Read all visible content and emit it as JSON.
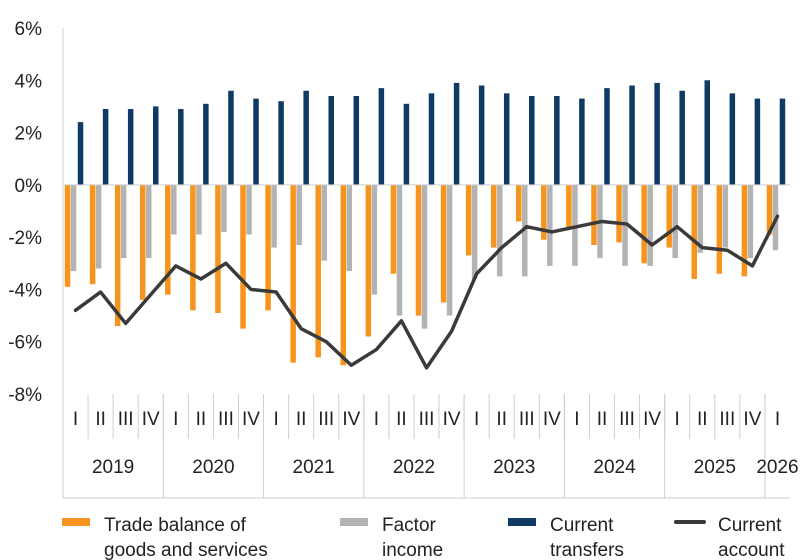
{
  "chart_data": {
    "type": "bar",
    "title": "",
    "xlabel": "",
    "ylabel": "",
    "ylim": [
      -8,
      6
    ],
    "yticks": [
      "6%",
      "4%",
      "2%",
      "0%",
      "-2%",
      "-4%",
      "-6%",
      "-8%"
    ],
    "ytick_values": [
      6,
      4,
      2,
      0,
      -2,
      -4,
      -6,
      -8
    ],
    "grid": false,
    "legend_position": "bottom",
    "categories": [
      "I",
      "II",
      "III",
      "IV",
      "I",
      "II",
      "III",
      "IV",
      "I",
      "II",
      "III",
      "IV",
      "I",
      "II",
      "III",
      "IV",
      "I",
      "II",
      "III",
      "IV",
      "I",
      "II",
      "III",
      "IV",
      "I",
      "II",
      "III",
      "IV",
      "I"
    ],
    "years": [
      {
        "label": "2019",
        "quarters": 4
      },
      {
        "label": "2020",
        "quarters": 4
      },
      {
        "label": "2021",
        "quarters": 4
      },
      {
        "label": "2022",
        "quarters": 4
      },
      {
        "label": "2023",
        "quarters": 4
      },
      {
        "label": "2024",
        "quarters": 4
      },
      {
        "label": "2025",
        "quarters": 4
      },
      {
        "label": "2026",
        "quarters": 1
      }
    ],
    "series": [
      {
        "name": "Trade balance of goods and services",
        "type": "bar",
        "color": "#f7941d",
        "values": [
          -3.9,
          -3.8,
          -5.4,
          -4.4,
          -4.2,
          -4.8,
          -4.9,
          -5.5,
          -4.8,
          -6.8,
          -6.6,
          -6.9,
          -5.8,
          -3.4,
          -5.0,
          -4.5,
          -2.7,
          -2.4,
          -1.4,
          -2.1,
          -1.7,
          -2.3,
          -2.2,
          -3.0,
          -2.4,
          -3.6,
          -3.4,
          -3.5,
          -1.9
        ]
      },
      {
        "name": "Factor income",
        "type": "bar",
        "color": "#b3b3b3",
        "values": [
          -3.3,
          -3.2,
          -2.8,
          -2.8,
          -1.9,
          -1.9,
          -1.8,
          -1.9,
          -2.4,
          -2.3,
          -2.9,
          -3.3,
          -4.2,
          -5.0,
          -5.5,
          -5.0,
          -3.6,
          -3.5,
          -3.5,
          -3.1,
          -3.1,
          -2.8,
          -3.1,
          -3.1,
          -2.8,
          -2.6,
          -2.4,
          -2.8,
          -2.5
        ]
      },
      {
        "name": "Current transfers",
        "type": "bar",
        "color": "#0f3a63",
        "values": [
          2.4,
          2.9,
          2.9,
          3.0,
          2.9,
          3.1,
          3.6,
          3.3,
          3.2,
          3.6,
          3.4,
          3.4,
          3.7,
          3.1,
          3.5,
          3.9,
          3.8,
          3.5,
          3.4,
          3.4,
          3.3,
          3.7,
          3.8,
          3.9,
          3.6,
          4.0,
          3.5,
          3.3,
          3.3
        ]
      },
      {
        "name": "Current account",
        "type": "line",
        "color": "#3a3a3a",
        "values": [
          -4.8,
          -4.1,
          -5.3,
          -4.2,
          -3.1,
          -3.6,
          -3.0,
          -4.0,
          -4.1,
          -5.5,
          -6.0,
          -6.9,
          -6.3,
          -5.2,
          -7.0,
          -5.6,
          -3.4,
          -2.4,
          -1.6,
          -1.8,
          -1.6,
          -1.4,
          -1.5,
          -2.3,
          -1.6,
          -2.4,
          -2.5,
          -3.1,
          -1.2
        ]
      }
    ],
    "legend": [
      {
        "lines": [
          "Trade balance of",
          "goods and services"
        ],
        "color": "#f7941d",
        "kind": "bar"
      },
      {
        "lines": [
          "Factor",
          "income"
        ],
        "color": "#b3b3b3",
        "kind": "bar"
      },
      {
        "lines": [
          "Current",
          "transfers"
        ],
        "color": "#0f3a63",
        "kind": "bar"
      },
      {
        "lines": [
          "Current",
          "account"
        ],
        "color": "#3a3a3a",
        "kind": "line"
      }
    ]
  }
}
